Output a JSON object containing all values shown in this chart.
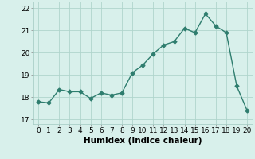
{
  "x": [
    0,
    1,
    2,
    3,
    4,
    5,
    6,
    7,
    8,
    9,
    10,
    11,
    12,
    13,
    14,
    15,
    16,
    17,
    18,
    19,
    20
  ],
  "y": [
    17.8,
    17.75,
    18.35,
    18.25,
    18.25,
    17.95,
    18.2,
    18.1,
    18.2,
    19.1,
    19.45,
    19.95,
    20.35,
    20.5,
    21.1,
    20.9,
    21.75,
    21.2,
    20.9,
    18.5,
    17.4
  ],
  "line_color": "#2e7d6e",
  "marker": "D",
  "marker_size": 2.5,
  "linewidth": 1.0,
  "bg_color": "#d8f0eb",
  "grid_color": "#b0d5cc",
  "xlabel": "Humidex (Indice chaleur)",
  "xlabel_fontsize": 7.5,
  "tick_fontsize": 6.5,
  "ylim": [
    16.8,
    22.3
  ],
  "xlim": [
    -0.5,
    20.5
  ],
  "yticks": [
    17,
    18,
    19,
    20,
    21,
    22
  ],
  "xticks": [
    0,
    1,
    2,
    3,
    4,
    5,
    6,
    7,
    8,
    9,
    10,
    11,
    12,
    13,
    14,
    15,
    16,
    17,
    18,
    19,
    20
  ]
}
